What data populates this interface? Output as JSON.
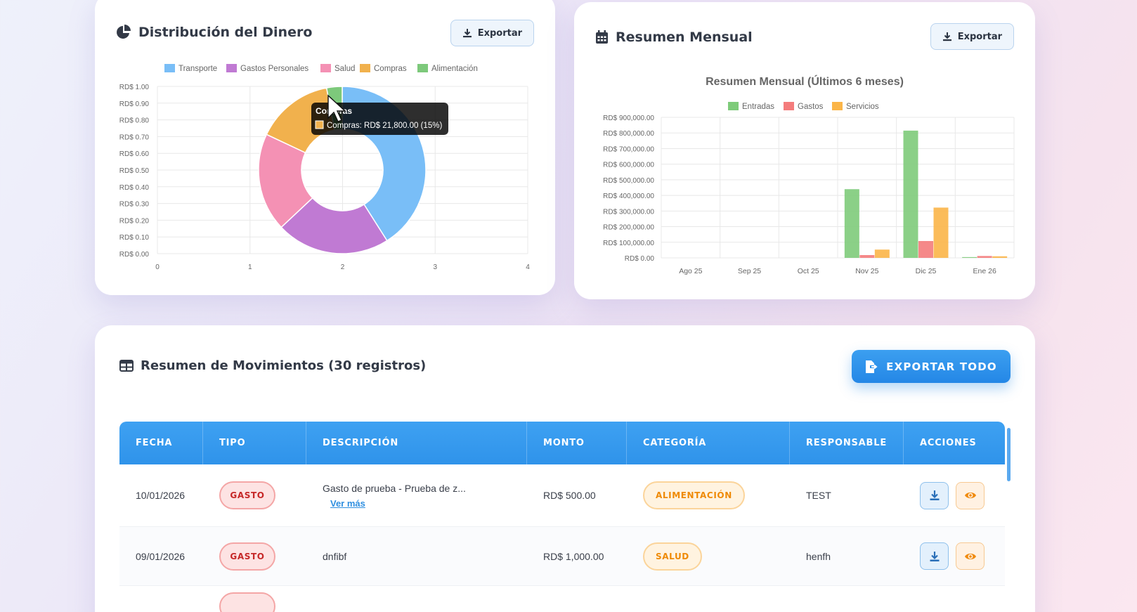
{
  "distribucion": {
    "title": "Distribución del Dinero",
    "export_label": "Exportar",
    "chart_data": {
      "type": "pie",
      "subtype": "doughnut",
      "legend": [
        "Transporte",
        "Gastos Personales",
        "Salud",
        "Compras",
        "Alimentación"
      ],
      "legend_position": "top",
      "values_pct": [
        41,
        22,
        19,
        15,
        3
      ],
      "colors": [
        "#79bef7",
        "#c07ad3",
        "#f491b4",
        "#f1b14d",
        "#7dc97b"
      ],
      "y_ticks": [
        "RD$ 1.00",
        "RD$ 0.90",
        "RD$ 0.80",
        "RD$ 0.70",
        "RD$ 0.60",
        "RD$ 0.50",
        "RD$ 0.40",
        "RD$ 0.30",
        "RD$ 0.20",
        "RD$ 0.10",
        "RD$ 0.00"
      ],
      "x_ticks": [
        "0",
        "1",
        "2",
        "3",
        "4"
      ],
      "grid": true,
      "tooltip": {
        "title": "Compras",
        "label": "Compras: RD$ 21,800.00 (15%)"
      }
    }
  },
  "mensual": {
    "title": "Resumen Mensual",
    "export_label": "Exportar",
    "chart_data": {
      "type": "bar",
      "title": "Resumen Mensual (Últimos 6 meses)",
      "categories": [
        "Ago 25",
        "Sep 25",
        "Oct 25",
        "Nov 25",
        "Dic 25",
        "Ene 26"
      ],
      "series": [
        {
          "name": "Entradas",
          "color": "#7ecb7a",
          "values": [
            0,
            0,
            0,
            440000,
            815000,
            5000
          ]
        },
        {
          "name": "Gastos",
          "color": "#f47c7c",
          "values": [
            0,
            0,
            0,
            18000,
            108000,
            12000
          ]
        },
        {
          "name": "Servicios",
          "color": "#fbb548",
          "values": [
            0,
            0,
            0,
            53000,
            322000,
            10000
          ]
        }
      ],
      "y_ticks": [
        "RD$ 900,000.00",
        "RD$ 800,000.00",
        "RD$ 700,000.00",
        "RD$ 600,000.00",
        "RD$ 500,000.00",
        "RD$ 400,000.00",
        "RD$ 300,000.00",
        "RD$ 200,000.00",
        "RD$ 100,000.00",
        "RD$ 0.00"
      ],
      "ylim": [
        0,
        900000
      ],
      "legend_position": "top",
      "grid": true
    }
  },
  "movimientos": {
    "title": "Resumen de Movimientos (30 registros)",
    "export_all_label": "EXPORTAR TODO",
    "columns": [
      "FECHA",
      "TIPO",
      "DESCRIPCIÓN",
      "MONTO",
      "CATEGORÍA",
      "RESPONSABLE",
      "ACCIONES"
    ],
    "rows": [
      {
        "fecha": "10/01/2026",
        "tipo": "GASTO",
        "descripcion": "Gasto de prueba - Prueba de z...",
        "ver_mas": "Ver más",
        "monto": "RD$ 500.00",
        "categoria": "ALIMENTACIÓN",
        "responsable": "TEST"
      },
      {
        "fecha": "09/01/2026",
        "tipo": "GASTO",
        "descripcion": "dnfibf",
        "ver_mas": "",
        "monto": "RD$ 1,000.00",
        "categoria": "SALUD",
        "responsable": "henfh"
      }
    ]
  }
}
